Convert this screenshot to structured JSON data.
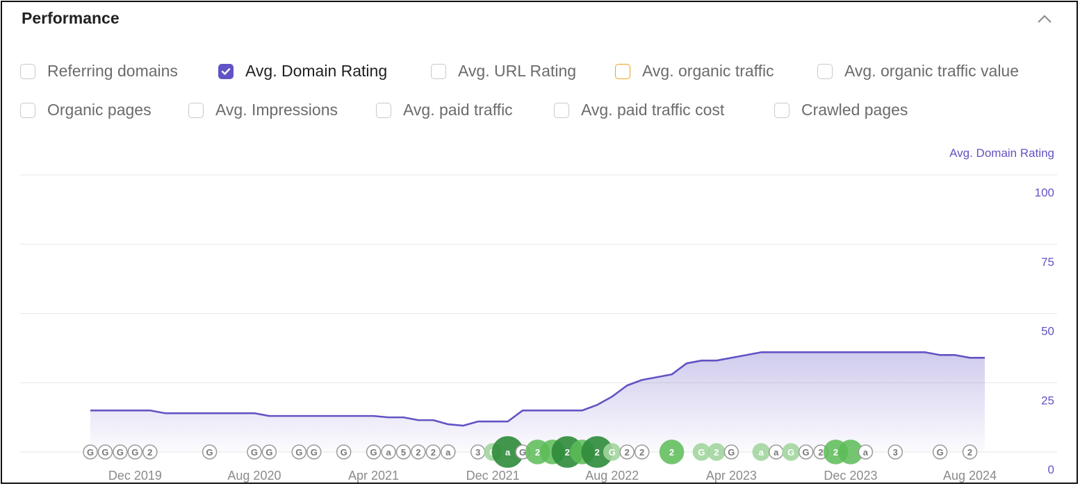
{
  "panel": {
    "title": "Performance"
  },
  "metrics_row1": [
    {
      "label": "Referring domains",
      "state": "off"
    },
    {
      "label": "Avg. Domain Rating",
      "state": "checked"
    },
    {
      "label": "Avg. URL Rating",
      "state": "off"
    },
    {
      "label": "Avg. organic traffic",
      "state": "orange"
    },
    {
      "label": "Avg. organic traffic value",
      "state": "off"
    }
  ],
  "metrics_row2": [
    {
      "label": "Organic pages",
      "state": "off"
    },
    {
      "label": "Avg. Impressions",
      "state": "off"
    },
    {
      "label": "Avg. paid traffic",
      "state": "off"
    },
    {
      "label": "Avg. paid traffic cost",
      "state": "off"
    },
    {
      "label": "Crawled pages",
      "state": "off"
    }
  ],
  "colors": {
    "accent": "#6153c4",
    "orange": "#f0a01a",
    "marker_green": "#4db04a",
    "marker_dark_green": "#2e8b3a"
  },
  "chart_data": {
    "type": "area",
    "series_label": "Avg. Domain Rating",
    "y_ticks": [
      "100",
      "75",
      "50",
      "25",
      "0"
    ],
    "ylim": [
      0,
      100
    ],
    "grid": true,
    "x_tick_labels": [
      "Dec 2019",
      "Aug 2020",
      "Apr 2021",
      "Dec 2021",
      "Aug 2022",
      "Apr 2023",
      "Dec 2023",
      "Aug 2024"
    ],
    "xlim": [
      "2019-06",
      "2024-10"
    ],
    "series": [
      {
        "name": "Avg. Domain Rating",
        "color": "#6153c4",
        "points": [
          [
            "2019-09",
            15
          ],
          [
            "2019-11",
            15
          ],
          [
            "2020-01",
            15
          ],
          [
            "2020-02",
            14
          ],
          [
            "2020-04",
            14
          ],
          [
            "2020-06",
            14
          ],
          [
            "2020-08",
            14
          ],
          [
            "2020-09",
            13
          ],
          [
            "2020-11",
            13
          ],
          [
            "2021-01",
            13
          ],
          [
            "2021-03",
            13
          ],
          [
            "2021-04",
            13
          ],
          [
            "2021-05",
            12.5
          ],
          [
            "2021-06",
            12.5
          ],
          [
            "2021-07",
            11.5
          ],
          [
            "2021-08",
            11.5
          ],
          [
            "2021-09",
            10
          ],
          [
            "2021-10",
            9.5
          ],
          [
            "2021-11",
            11
          ],
          [
            "2021-12",
            11
          ],
          [
            "2022-01",
            11
          ],
          [
            "2022-02",
            15
          ],
          [
            "2022-03",
            15
          ],
          [
            "2022-05",
            15
          ],
          [
            "2022-06",
            15
          ],
          [
            "2022-07",
            17
          ],
          [
            "2022-08",
            20
          ],
          [
            "2022-09",
            24
          ],
          [
            "2022-10",
            26
          ],
          [
            "2022-11",
            27
          ],
          [
            "2022-12",
            28
          ],
          [
            "2023-01",
            32
          ],
          [
            "2023-02",
            33
          ],
          [
            "2023-03",
            33
          ],
          [
            "2023-05",
            35
          ],
          [
            "2023-06",
            36
          ],
          [
            "2023-08",
            36
          ],
          [
            "2023-11",
            36
          ],
          [
            "2024-02",
            36
          ],
          [
            "2024-05",
            36
          ],
          [
            "2024-06",
            35
          ],
          [
            "2024-07",
            35
          ],
          [
            "2024-08",
            34
          ],
          [
            "2024-09",
            34
          ]
        ]
      }
    ],
    "annotations": [
      {
        "x": "2019-09",
        "label": "G",
        "style": "outline"
      },
      {
        "x": "2019-10",
        "label": "G",
        "style": "outline"
      },
      {
        "x": "2019-11",
        "label": "G",
        "style": "outline"
      },
      {
        "x": "2019-12",
        "label": "G",
        "style": "outline"
      },
      {
        "x": "2020-01",
        "label": "2",
        "style": "outline"
      },
      {
        "x": "2020-05",
        "label": "G",
        "style": "outline"
      },
      {
        "x": "2020-08",
        "label": "G",
        "style": "outline"
      },
      {
        "x": "2020-09",
        "label": "G",
        "style": "outline"
      },
      {
        "x": "2020-11",
        "label": "G",
        "style": "outline"
      },
      {
        "x": "2020-12",
        "label": "G",
        "style": "outline"
      },
      {
        "x": "2021-02",
        "label": "G",
        "style": "outline"
      },
      {
        "x": "2021-04",
        "label": "G",
        "style": "outline"
      },
      {
        "x": "2021-05",
        "label": "a",
        "style": "outline"
      },
      {
        "x": "2021-06",
        "label": "5",
        "style": "outline"
      },
      {
        "x": "2021-07",
        "label": "2",
        "style": "outline"
      },
      {
        "x": "2021-08",
        "label": "2",
        "style": "outline"
      },
      {
        "x": "2021-09",
        "label": "a",
        "style": "outline"
      },
      {
        "x": "2021-11",
        "label": "3",
        "style": "outline"
      },
      {
        "x": "2021-12",
        "label": "G",
        "style": "light"
      },
      {
        "x": "2022-01",
        "label": "a",
        "style": "dark"
      },
      {
        "x": "2022-02",
        "label": "G",
        "style": "outline"
      },
      {
        "x": "2022-03",
        "label": "2",
        "style": "green"
      },
      {
        "x": "2022-04",
        "label": "",
        "style": "green"
      },
      {
        "x": "2022-05",
        "label": "2",
        "style": "dark"
      },
      {
        "x": "2022-06",
        "label": "",
        "style": "green"
      },
      {
        "x": "2022-07",
        "label": "2",
        "style": "dark"
      },
      {
        "x": "2022-08",
        "label": "G",
        "style": "light"
      },
      {
        "x": "2022-09",
        "label": "2",
        "style": "outline"
      },
      {
        "x": "2022-10",
        "label": "2",
        "style": "outline"
      },
      {
        "x": "2022-12",
        "label": "2",
        "style": "green"
      },
      {
        "x": "2023-02",
        "label": "G",
        "style": "light"
      },
      {
        "x": "2023-03",
        "label": "2",
        "style": "light"
      },
      {
        "x": "2023-04",
        "label": "G",
        "style": "outline"
      },
      {
        "x": "2023-06",
        "label": "a",
        "style": "light"
      },
      {
        "x": "2023-07",
        "label": "a",
        "style": "outline"
      },
      {
        "x": "2023-08",
        "label": "G",
        "style": "light"
      },
      {
        "x": "2023-09",
        "label": "G",
        "style": "outline"
      },
      {
        "x": "2023-10",
        "label": "2",
        "style": "outline"
      },
      {
        "x": "2023-11",
        "label": "2",
        "style": "green"
      },
      {
        "x": "2023-12",
        "label": "",
        "style": "green"
      },
      {
        "x": "2024-01",
        "label": "a",
        "style": "outline"
      },
      {
        "x": "2024-03",
        "label": "3",
        "style": "outline"
      },
      {
        "x": "2024-06",
        "label": "G",
        "style": "outline"
      },
      {
        "x": "2024-08",
        "label": "2",
        "style": "outline"
      }
    ]
  }
}
